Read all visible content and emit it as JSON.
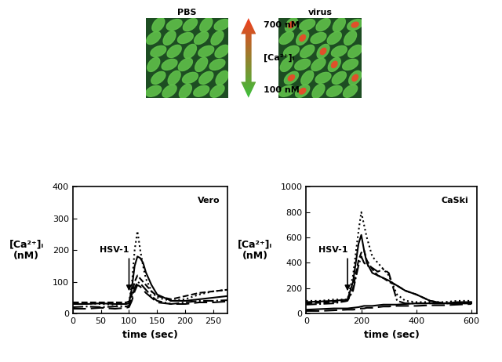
{
  "panels": [
    {
      "title": "PBS"
    },
    {
      "title": "virus"
    }
  ],
  "scale": {
    "top": "700 nM",
    "label": "[Ca²⁺]ᵢ",
    "bottom": "100 nM"
  },
  "chart_data": [
    {
      "type": "line",
      "title": "Vero",
      "x_label": "time (sec)",
      "y_label": "[Ca²⁺]ᵢ\n(nM)",
      "annotations": [
        {
          "text": "HSV-1",
          "x": 100
        }
      ],
      "xlim": [
        0,
        275
      ],
      "xticks": [
        0,
        50,
        100,
        150,
        200,
        250
      ],
      "ylim": [
        0,
        400
      ],
      "yticks": [
        0,
        100,
        200,
        300,
        400
      ],
      "x": [
        0,
        25,
        50,
        75,
        95,
        100,
        105,
        110,
        115,
        120,
        125,
        130,
        140,
        150,
        175,
        200,
        225,
        250,
        275
      ],
      "series": [
        {
          "color": "black",
          "line_style": "dotted",
          "values": [
            30,
            32,
            30,
            28,
            30,
            35,
            90,
            200,
            260,
            200,
            150,
            110,
            70,
            50,
            40,
            45,
            60,
            70,
            75
          ]
        },
        {
          "color": "black",
          "line_style": "solid",
          "values": [
            30,
            30,
            32,
            30,
            30,
            32,
            80,
            150,
            180,
            175,
            160,
            130,
            90,
            60,
            40,
            40,
            45,
            50,
            55
          ]
        },
        {
          "color": "black",
          "line_style": "dashed",
          "values": [
            35,
            35,
            35,
            35,
            35,
            38,
            60,
            100,
            120,
            110,
            100,
            90,
            70,
            55,
            45,
            55,
            65,
            70,
            75
          ]
        },
        {
          "color": "black",
          "line_style": "dashdot",
          "values": [
            20,
            22,
            20,
            22,
            22,
            25,
            50,
            80,
            100,
            95,
            85,
            75,
            55,
            40,
            30,
            35,
            40,
            40,
            42
          ]
        },
        {
          "color": "black",
          "line_style": "longdash",
          "values": [
            15,
            15,
            18,
            15,
            18,
            20,
            40,
            70,
            90,
            85,
            75,
            65,
            50,
            35,
            30,
            30,
            35,
            35,
            38
          ]
        }
      ]
    },
    {
      "type": "line",
      "title": "CaSki",
      "x_label": "time (sec)",
      "y_label": "[Ca²⁺]ᵢ\n(nM)",
      "annotations": [
        {
          "text": "HSV-1",
          "x": 150
        }
      ],
      "xlim": [
        0,
        620
      ],
      "xticks": [
        0,
        200,
        400,
        600
      ],
      "ylim": [
        0,
        1000
      ],
      "yticks": [
        0,
        200,
        400,
        600,
        800,
        1000
      ],
      "x": [
        0,
        50,
        100,
        150,
        170,
        190,
        200,
        210,
        220,
        240,
        260,
        280,
        300,
        330,
        360,
        400,
        450,
        500,
        550,
        600
      ],
      "series": [
        {
          "color": "black",
          "line_style": "dotted",
          "values": [
            100,
            100,
            110,
            110,
            300,
            650,
            800,
            700,
            600,
            450,
            400,
            350,
            300,
            150,
            100,
            90,
            90,
            90,
            100,
            100
          ]
        },
        {
          "color": "black",
          "line_style": "solid",
          "values": [
            90,
            95,
            100,
            110,
            250,
            550,
            620,
            500,
            400,
            320,
            300,
            280,
            260,
            220,
            180,
            150,
            100,
            80,
            80,
            80
          ]
        },
        {
          "color": "black",
          "line_style": "dashed",
          "values": [
            80,
            85,
            90,
            100,
            200,
            420,
            480,
            500,
            420,
            350,
            300,
            280,
            250,
            220,
            180,
            150,
            100,
            80,
            80,
            80
          ]
        },
        {
          "color": "black",
          "line_style": "dashdot",
          "values": [
            70,
            75,
            80,
            100,
            180,
            380,
            450,
            400,
            380,
            360,
            330,
            350,
            320,
            100,
            80,
            80,
            80,
            80,
            80,
            90
          ]
        },
        {
          "color": "black",
          "line_style": "solid",
          "values": [
            30,
            35,
            40,
            40,
            45,
            50,
            55,
            60,
            60,
            60,
            65,
            70,
            70,
            70,
            75,
            80,
            80,
            80,
            90,
            90
          ]
        },
        {
          "color": "black",
          "line_style": "longdash",
          "values": [
            20,
            20,
            25,
            30,
            30,
            35,
            40,
            40,
            45,
            45,
            50,
            55,
            55,
            60,
            60,
            60,
            65,
            65,
            70,
            75
          ]
        }
      ]
    }
  ]
}
